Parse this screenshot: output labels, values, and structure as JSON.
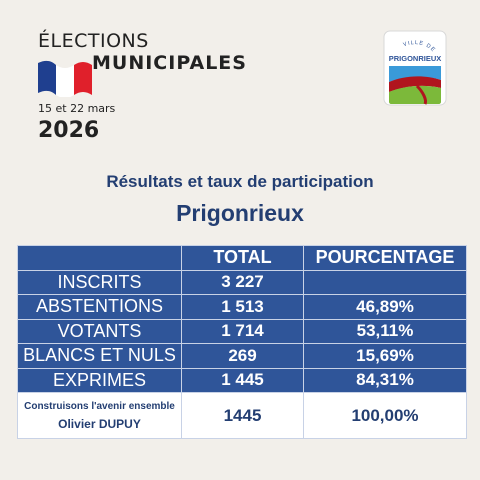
{
  "header": {
    "elections": "ÉLECTIONS",
    "municipales": "MUNICIPALES",
    "dates": "15 et 22 mars",
    "year": "2026",
    "logo_text_top": "VILLE DE",
    "logo_text_name": "PRIGONRIEUX"
  },
  "title": {
    "subtitle": "Résultats et taux de participation",
    "commune": "Prigonrieux"
  },
  "table": {
    "headers": [
      "",
      "TOTAL",
      "POURCENTAGE"
    ],
    "rows": [
      {
        "label": "INSCRITS",
        "total": "3 227",
        "pct": ""
      },
      {
        "label": "ABSTENTIONS",
        "total": "1 513",
        "pct": "46,89%"
      },
      {
        "label": "VOTANTS",
        "total": "1 714",
        "pct": "53,11%"
      },
      {
        "label": "BLANCS ET NULS",
        "total": "269",
        "pct": "15,69%"
      },
      {
        "label": "EXPRIMES",
        "total": "1 445",
        "pct": "84,31%"
      }
    ],
    "candidate": {
      "list_name": "Construisons l'avenir ensemble",
      "head": "Olivier DUPUY",
      "total": "1445",
      "pct": "100,00%"
    }
  },
  "colors": {
    "background": "#f2efea",
    "table_blue": "#2f5599",
    "title_navy": "#233e72",
    "flag_blue": "#1f3f8f",
    "flag_red": "#e0202b"
  }
}
